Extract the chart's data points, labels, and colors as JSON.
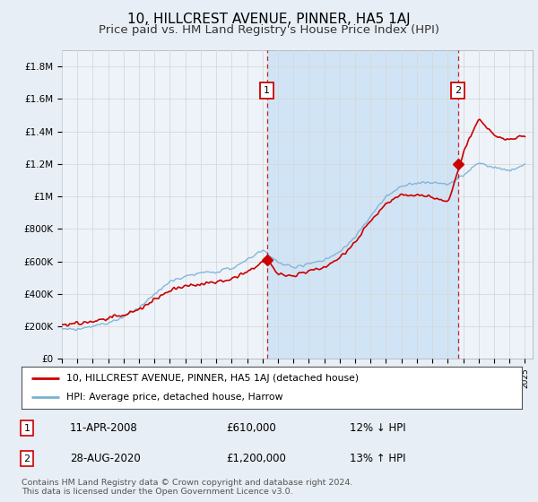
{
  "title": "10, HILLCREST AVENUE, PINNER, HA5 1AJ",
  "subtitle": "Price paid vs. HM Land Registry's House Price Index (HPI)",
  "ylabel_ticks": [
    "£0",
    "£200K",
    "£400K",
    "£600K",
    "£800K",
    "£1M",
    "£1.2M",
    "£1.4M",
    "£1.6M",
    "£1.8M"
  ],
  "ytick_values": [
    0,
    200000,
    400000,
    600000,
    800000,
    1000000,
    1200000,
    1400000,
    1600000,
    1800000
  ],
  "ylim": [
    0,
    1900000
  ],
  "xlim_start": 1995.0,
  "xlim_end": 2025.5,
  "transaction1_date": 2008.28,
  "transaction1_price": 610000,
  "transaction2_date": 2020.65,
  "transaction2_price": 1200000,
  "legend_line1": "10, HILLCREST AVENUE, PINNER, HA5 1AJ (detached house)",
  "legend_line2": "HPI: Average price, detached house, Harrow",
  "table_row1_num": "1",
  "table_row1_date": "11-APR-2008",
  "table_row1_price": "£610,000",
  "table_row1_note": "12% ↓ HPI",
  "table_row2_num": "2",
  "table_row2_date": "28-AUG-2020",
  "table_row2_price": "£1,200,000",
  "table_row2_note": "13% ↑ HPI",
  "footer": "Contains HM Land Registry data © Crown copyright and database right 2024.\nThis data is licensed under the Open Government Licence v3.0.",
  "line_color_red": "#cc0000",
  "line_color_blue": "#7ab0d4",
  "background_color": "#e8eef5",
  "plot_bg": "#edf3f9",
  "shade_color": "#d0e4f5",
  "grid_color": "#d8d8d8",
  "marker_box_color": "#cc0000",
  "title_fontsize": 11,
  "subtitle_fontsize": 9.5
}
